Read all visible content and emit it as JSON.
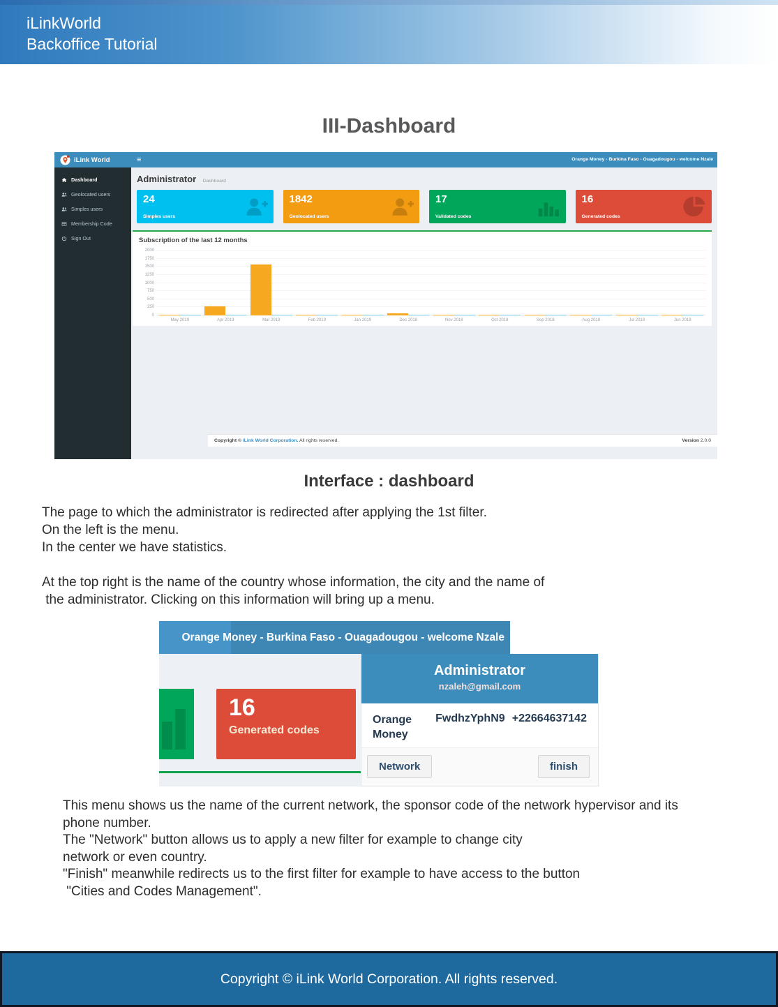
{
  "page": {
    "header": {
      "line1": "iLinkWorld",
      "line2": "Backoffice Tutorial"
    },
    "title": "III-Dashboard",
    "subtitle": "Interface : dashboard",
    "paragraph1": [
      "The page to which the administrator is redirected after applying the 1st filter.",
      "On the left is the menu.",
      "In the center we have statistics.",
      "",
      "At the top right is the name of the country whose information, the city and the name of",
      " the administrator. Clicking on this information will bring up a menu."
    ],
    "paragraph2": [
      "This menu shows us the name of the current network, the sponsor code of the network hypervisor and its",
      "phone number.",
      "The \"Network\" button allows us to apply a new filter for example to change city",
      "network or even country.",
      "\"Finish\" meanwhile redirects us to the first filter for example to have access to the button",
      " \"Cities and Codes Management\"."
    ],
    "footer": {
      "text": "Copyright © iLink World Corporation. All rights reserved."
    }
  },
  "dashboard": {
    "navbar": {
      "brand": "iLink World",
      "menu_icon": "≡",
      "user_info": "Orange Money - Burkina Faso - Ouagadougou - welcome Nzale"
    },
    "sidebar": {
      "items": [
        {
          "label": "Dashboard",
          "icon": "home-icon",
          "active": true
        },
        {
          "label": "Geolocated users",
          "icon": "users-icon",
          "active": false
        },
        {
          "label": "Simples users",
          "icon": "users-icon",
          "active": false
        },
        {
          "label": "Membership Code",
          "icon": "table-icon",
          "active": false
        },
        {
          "label": "Sign Out",
          "icon": "power-icon",
          "active": false
        }
      ]
    },
    "content": {
      "heading": "Administrator",
      "breadcrumb": "Dashboard",
      "cards": [
        {
          "value": "24",
          "label": "Simples users",
          "color": "#00c0ef",
          "icon": "user-plus-icon"
        },
        {
          "value": "1842",
          "label": "Geolocated users",
          "color": "#f39c12",
          "icon": "user-plus-icon"
        },
        {
          "value": "17",
          "label": "Validated codes",
          "color": "#00a65a",
          "icon": "bar-chart-icon"
        },
        {
          "value": "16",
          "label": "Generated codes",
          "color": "#dd4b39",
          "icon": "pie-chart-icon"
        }
      ],
      "footer": {
        "copy_pre": "Copyright © ",
        "copy_link": "iLink World Corporation.",
        "copy_post": " All rights reserved.",
        "version_label": "Version",
        "version_value": " 2.0.0"
      }
    }
  },
  "chart_data": {
    "type": "bar",
    "title": "Subscription of the last 12 months",
    "categories": [
      "May 2019",
      "Apr 2019",
      "Mar 2019",
      "Feb 2019",
      "Jan 2019",
      "Dec 2018",
      "Nov 2018",
      "Oct 2018",
      "Sep 2018",
      "Aug 2018",
      "Jul 2018",
      "Jun 2018"
    ],
    "series": [
      {
        "name": "orange-series",
        "color": "#f6a821",
        "values": [
          10,
          270,
          1560,
          15,
          8,
          60,
          15,
          10,
          12,
          12,
          12,
          10
        ]
      },
      {
        "name": "blue-series",
        "color": "#6ec6e6",
        "values": [
          15,
          18,
          25,
          15,
          12,
          20,
          15,
          12,
          12,
          14,
          12,
          10
        ]
      }
    ],
    "ylim": [
      0,
      2000
    ],
    "yticks": [
      0,
      250,
      500,
      750,
      1000,
      1250,
      1500,
      1750,
      2000
    ],
    "grid": true,
    "legend": "none"
  },
  "menu_screenshot": {
    "topbar_text": "Orange Money - Burkina Faso - Ouagadougou - welcome Nzale",
    "red_card": {
      "value": "16",
      "label": "Generated codes"
    },
    "dropdown": {
      "title": "Administrator",
      "email": "nzaleh@gmail.com",
      "network_name": "Orange Money",
      "sponsor_code": "FwdhzYphN9",
      "phone": "+22664637142",
      "buttons": [
        {
          "label": "Network"
        },
        {
          "label": "finish"
        }
      ]
    }
  }
}
